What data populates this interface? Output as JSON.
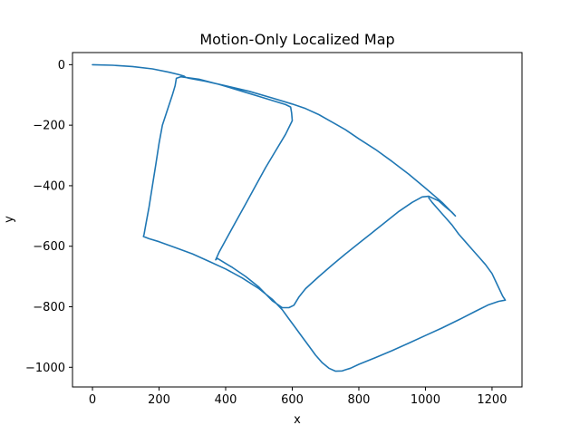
{
  "chart_data": {
    "type": "line",
    "title": "Motion-Only Localized Map",
    "xlabel": "x",
    "ylabel": "y",
    "xlim": [
      -60,
      1290
    ],
    "ylim": [
      -1065,
      40
    ],
    "x_ticks": [
      0,
      200,
      400,
      600,
      800,
      1000,
      1200
    ],
    "y_ticks": [
      0,
      -200,
      -400,
      -600,
      -800,
      -1000
    ],
    "x_tick_labels": [
      "0",
      "200",
      "400",
      "600",
      "800",
      "1000",
      "1200"
    ],
    "y_tick_labels": [
      "0",
      "−200",
      "−400",
      "−600",
      "−800",
      "−1000"
    ],
    "grid": false,
    "line_color": "#1f77b4",
    "series": [
      {
        "x": [
          0,
          60,
          120,
          180,
          230,
          260,
          275,
          280,
          290,
          340,
          400,
          470,
          540,
          600,
          640,
          680,
          720,
          760,
          800,
          850,
          900,
          950,
          1000,
          1050,
          1090,
          1080,
          1060,
          1040,
          1020,
          1010,
          990,
          960,
          920,
          880,
          840,
          800,
          760,
          720,
          680,
          640,
          620,
          605,
          590,
          570,
          540,
          500,
          460,
          420,
          390,
          375,
          370,
          380,
          400,
          430,
          460,
          490,
          520,
          550,
          580,
          600,
          598,
          595,
          580,
          560,
          500,
          440,
          380,
          320,
          265,
          252,
          248,
          240,
          225,
          210,
          200,
          190,
          180,
          170,
          160,
          155,
          153,
          170,
          200,
          250,
          300,
          350,
          400,
          450,
          500,
          540,
          570,
          590,
          610,
          630,
          650,
          670,
          690,
          710,
          730,
          750,
          760,
          775,
          800,
          850,
          900,
          950,
          1000,
          1050,
          1100,
          1150,
          1190,
          1220,
          1240,
          1232,
          1215,
          1200,
          1180,
          1160,
          1140,
          1120,
          1100,
          1080,
          1060,
          1040,
          1020,
          1010
        ],
        "y": [
          0,
          -2,
          -6,
          -14,
          -25,
          -33,
          -38,
          -42,
          -45,
          -55,
          -70,
          -88,
          -110,
          -130,
          -145,
          -165,
          -190,
          -215,
          -245,
          -280,
          -320,
          -362,
          -408,
          -455,
          -500,
          -488,
          -470,
          -450,
          -440,
          -435,
          -437,
          -455,
          -485,
          -520,
          -555,
          -590,
          -625,
          -662,
          -700,
          -740,
          -768,
          -795,
          -803,
          -803,
          -780,
          -735,
          -700,
          -670,
          -650,
          -640,
          -645,
          -620,
          -580,
          -520,
          -460,
          -400,
          -340,
          -285,
          -230,
          -185,
          -160,
          -140,
          -132,
          -125,
          -105,
          -85,
          -65,
          -48,
          -40,
          -45,
          -70,
          -100,
          -150,
          -200,
          -260,
          -330,
          -400,
          -470,
          -530,
          -560,
          -568,
          -575,
          -585,
          -605,
          -625,
          -650,
          -675,
          -705,
          -740,
          -775,
          -810,
          -840,
          -870,
          -900,
          -930,
          -960,
          -985,
          -1003,
          -1013,
          -1012,
          -1008,
          -1003,
          -990,
          -968,
          -945,
          -920,
          -895,
          -870,
          -843,
          -815,
          -793,
          -782,
          -778,
          -765,
          -725,
          -690,
          -660,
          -635,
          -610,
          -585,
          -560,
          -530,
          -505,
          -480,
          -455,
          -440
        ]
      }
    ]
  }
}
